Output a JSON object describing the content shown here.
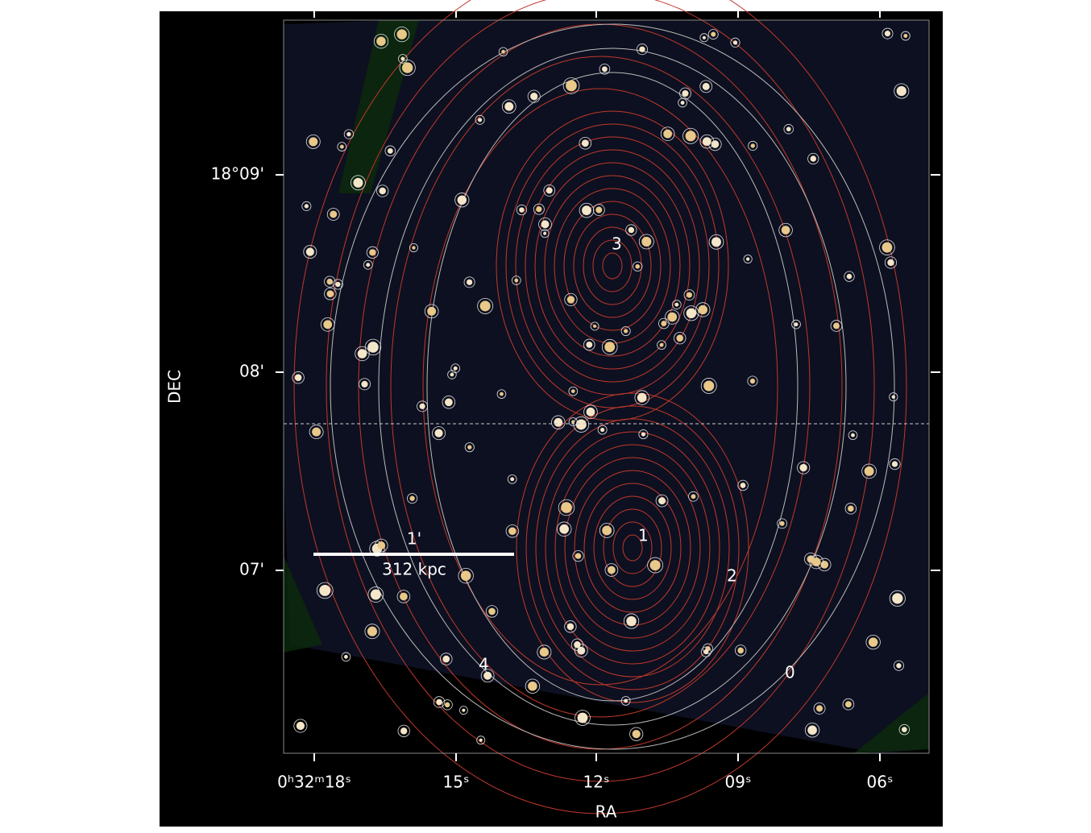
{
  "axes": {
    "x_label": "RA",
    "y_label": "DEC",
    "x_ticks": [
      "0ʰ32ᵐ18ˢ",
      "15ˢ",
      "12ˢ",
      "09ˢ",
      "06ˢ"
    ],
    "y_ticks": [
      "18°09'",
      "08'",
      "07'"
    ]
  },
  "scale_bar": {
    "angle": "1'",
    "distance": "312 kpc"
  },
  "markers": [
    "0",
    "1",
    "2",
    "3",
    "4"
  ]
}
